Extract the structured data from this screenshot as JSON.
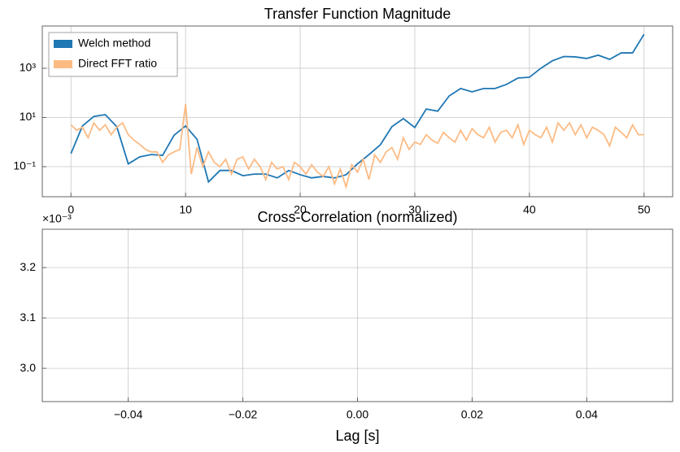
{
  "chart_data": [
    {
      "type": "line",
      "title": "Transfer Function Magnitude",
      "log_y": true,
      "grid": true,
      "legend": "upper left",
      "xlim": [
        -2.5,
        52.5
      ],
      "xticks": [
        0,
        10,
        20,
        30,
        40,
        50
      ],
      "ylim": [
        0.006,
        52000
      ],
      "yticks": [
        {
          "value": 0.1,
          "label": "10⁻¹"
        },
        {
          "value": 10,
          "label": "10¹"
        },
        {
          "value": 1000,
          "label": "10³"
        }
      ],
      "series": [
        {
          "name": "Welch method",
          "color": "#1f77b4",
          "x": [
            0,
            1,
            2,
            3,
            4,
            5,
            6,
            7,
            8,
            9,
            10,
            11,
            12,
            13,
            14,
            15,
            16,
            17,
            18,
            19,
            20,
            21,
            22,
            23,
            24,
            25,
            26,
            27,
            28,
            29,
            30,
            31,
            32,
            33,
            34,
            35,
            36,
            37,
            38,
            39,
            40,
            41,
            42,
            43,
            44,
            45,
            46,
            47,
            48,
            49,
            50
          ],
          "values": [
            0.34,
            4.5,
            11,
            13,
            4.2,
            0.13,
            0.25,
            0.31,
            0.29,
            1.9,
            4.5,
            1.3,
            0.024,
            0.07,
            0.07,
            0.043,
            0.05,
            0.05,
            0.035,
            0.07,
            0.047,
            0.035,
            0.04,
            0.035,
            0.047,
            0.13,
            0.31,
            0.78,
            4.2,
            9,
            3.9,
            22,
            18,
            75,
            150,
            110,
            150,
            150,
            220,
            400,
            430,
            1000,
            2000,
            3000,
            2900,
            2500,
            3400,
            2300,
            4200,
            4200,
            24000
          ]
        },
        {
          "name": "Direct FFT ratio",
          "color": "#fdbb84",
          "x": [
            0,
            0.5,
            1,
            1.5,
            2,
            2.5,
            3,
            3.5,
            4,
            4.5,
            5,
            5.5,
            6,
            6.5,
            7,
            7.5,
            8,
            8.5,
            9,
            9.5,
            10,
            10.5,
            11,
            11.5,
            12,
            12.5,
            13,
            13.5,
            14,
            14.5,
            15,
            15.5,
            16,
            16.5,
            17,
            17.5,
            18,
            18.5,
            19,
            19.5,
            20,
            20.5,
            21,
            21.5,
            22,
            22.5,
            23,
            23.5,
            24,
            24.5,
            25,
            25.5,
            26,
            26.5,
            27,
            27.5,
            28,
            28.5,
            29,
            29.5,
            30,
            30.5,
            31,
            31.5,
            32,
            32.5,
            33,
            33.5,
            34,
            34.5,
            35,
            35.5,
            36,
            36.5,
            37,
            37.5,
            38,
            38.5,
            39,
            39.5,
            40,
            40.5,
            41,
            41.5,
            42,
            42.5,
            43,
            43.5,
            44,
            44.5,
            45,
            45.5,
            46,
            46.5,
            47,
            47.5,
            48,
            48.5,
            49,
            49.5,
            50
          ],
          "values": [
            5,
            3,
            4,
            1.5,
            6,
            3,
            5,
            2,
            4,
            6,
            2,
            1.2,
            0.8,
            0.5,
            0.4,
            0.4,
            0.15,
            0.3,
            0.4,
            0.5,
            35,
            0.05,
            0.6,
            0.1,
            0.4,
            0.15,
            0.1,
            0.2,
            0.05,
            0.2,
            0.25,
            0.08,
            0.2,
            0.1,
            0.03,
            0.15,
            0.08,
            0.1,
            0.03,
            0.15,
            0.1,
            0.05,
            0.12,
            0.06,
            0.04,
            0.1,
            0.02,
            0.08,
            0.015,
            0.12,
            0.06,
            0.2,
            0.03,
            0.3,
            0.15,
            0.4,
            0.6,
            0.2,
            1.5,
            0.5,
            1,
            0.8,
            2,
            1.2,
            0.9,
            2.5,
            1.5,
            1,
            3,
            1.2,
            3.5,
            2,
            1.5,
            4,
            1,
            2.5,
            3,
            1.5,
            5,
            0.8,
            3,
            2,
            1.5,
            4,
            1,
            6,
            3,
            6,
            2,
            5,
            1.5,
            4,
            3,
            2,
            0.7,
            4,
            2.5,
            1.5,
            5,
            2,
            2
          ]
        }
      ]
    },
    {
      "type": "line",
      "title": "Cross-Correlation (normalized)",
      "x_label": "Lag [s]",
      "y_offset_label": "×10⁻³",
      "grid": true,
      "xlim": [
        -0.055,
        0.055
      ],
      "xticks": [
        {
          "value": -0.04,
          "label": "−0.04"
        },
        {
          "value": -0.02,
          "label": "−0.02"
        },
        {
          "value": 0,
          "label": "0.00"
        },
        {
          "value": 0.02,
          "label": "0.02"
        },
        {
          "value": 0.04,
          "label": "0.04"
        }
      ],
      "ylim": [
        2.934,
        3.276
      ],
      "yticks": [
        {
          "value": 3.0,
          "label": "3.0"
        },
        3.1,
        3.2
      ],
      "series": []
    }
  ]
}
